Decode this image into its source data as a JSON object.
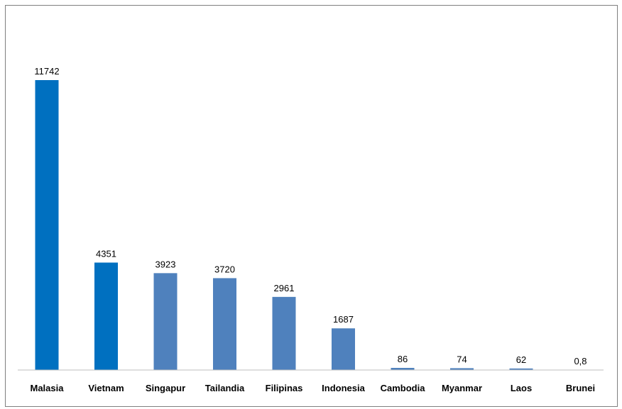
{
  "chart_data": {
    "type": "bar",
    "categories": [
      "Malasia",
      "Vietnam",
      "Singapur",
      "Tailandia",
      "Filipinas",
      "Indonesia",
      "Cambodia",
      "Myanmar",
      "Laos",
      "Brunei"
    ],
    "values": [
      11742,
      4351,
      3923,
      3720,
      2961,
      1687,
      86,
      74,
      62,
      0.8
    ],
    "value_labels": [
      "11742",
      "4351",
      "3923",
      "3720",
      "2961",
      "1687",
      "86",
      "74",
      "62",
      "0,8"
    ],
    "ylim": [
      0,
      12000
    ],
    "grid": false,
    "legend": "none",
    "colors": {
      "highlight": "#0070C0",
      "default": "#4F81BD",
      "axis": "#BFBFBF",
      "frame": "#7F7F7F"
    },
    "highlighted": [
      "Malasia",
      "Vietnam"
    ]
  }
}
